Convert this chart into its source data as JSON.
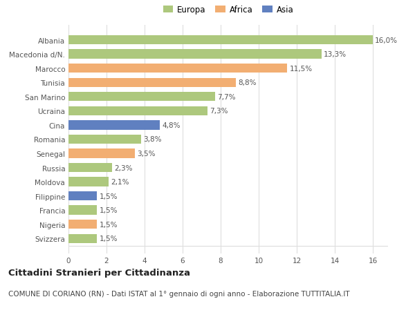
{
  "countries": [
    "Svizzera",
    "Nigeria",
    "Francia",
    "Filippine",
    "Moldova",
    "Russia",
    "Senegal",
    "Romania",
    "Cina",
    "Ucraina",
    "San Marino",
    "Tunisia",
    "Marocco",
    "Macedonia d/N.",
    "Albania"
  ],
  "values": [
    1.5,
    1.5,
    1.5,
    1.5,
    2.1,
    2.3,
    3.5,
    3.8,
    4.8,
    7.3,
    7.7,
    8.8,
    11.5,
    13.3,
    16.0
  ],
  "labels": [
    "1,5%",
    "1,5%",
    "1,5%",
    "1,5%",
    "2,1%",
    "2,3%",
    "3,5%",
    "3,8%",
    "4,8%",
    "7,3%",
    "7,7%",
    "8,8%",
    "11,5%",
    "13,3%",
    "16,0%"
  ],
  "continents": [
    "Europa",
    "Africa",
    "Europa",
    "Asia",
    "Europa",
    "Europa",
    "Africa",
    "Europa",
    "Asia",
    "Europa",
    "Europa",
    "Africa",
    "Africa",
    "Europa",
    "Europa"
  ],
  "colors": {
    "Europa": "#adc87d",
    "Africa": "#f2ae72",
    "Asia": "#6080c0"
  },
  "title": "Cittadini Stranieri per Cittadinanza",
  "subtitle": "COMUNE DI CORIANO (RN) - Dati ISTAT al 1° gennaio di ogni anno - Elaborazione TUTTITALIA.IT",
  "xlim": [
    0,
    16.8
  ],
  "xticks": [
    0,
    2,
    4,
    6,
    8,
    10,
    12,
    14,
    16
  ],
  "background_color": "#ffffff",
  "grid_color": "#dddddd",
  "bar_height": 0.65,
  "title_fontsize": 9.5,
  "subtitle_fontsize": 7.5,
  "label_fontsize": 7.5,
  "tick_fontsize": 7.5,
  "legend_fontsize": 8.5
}
